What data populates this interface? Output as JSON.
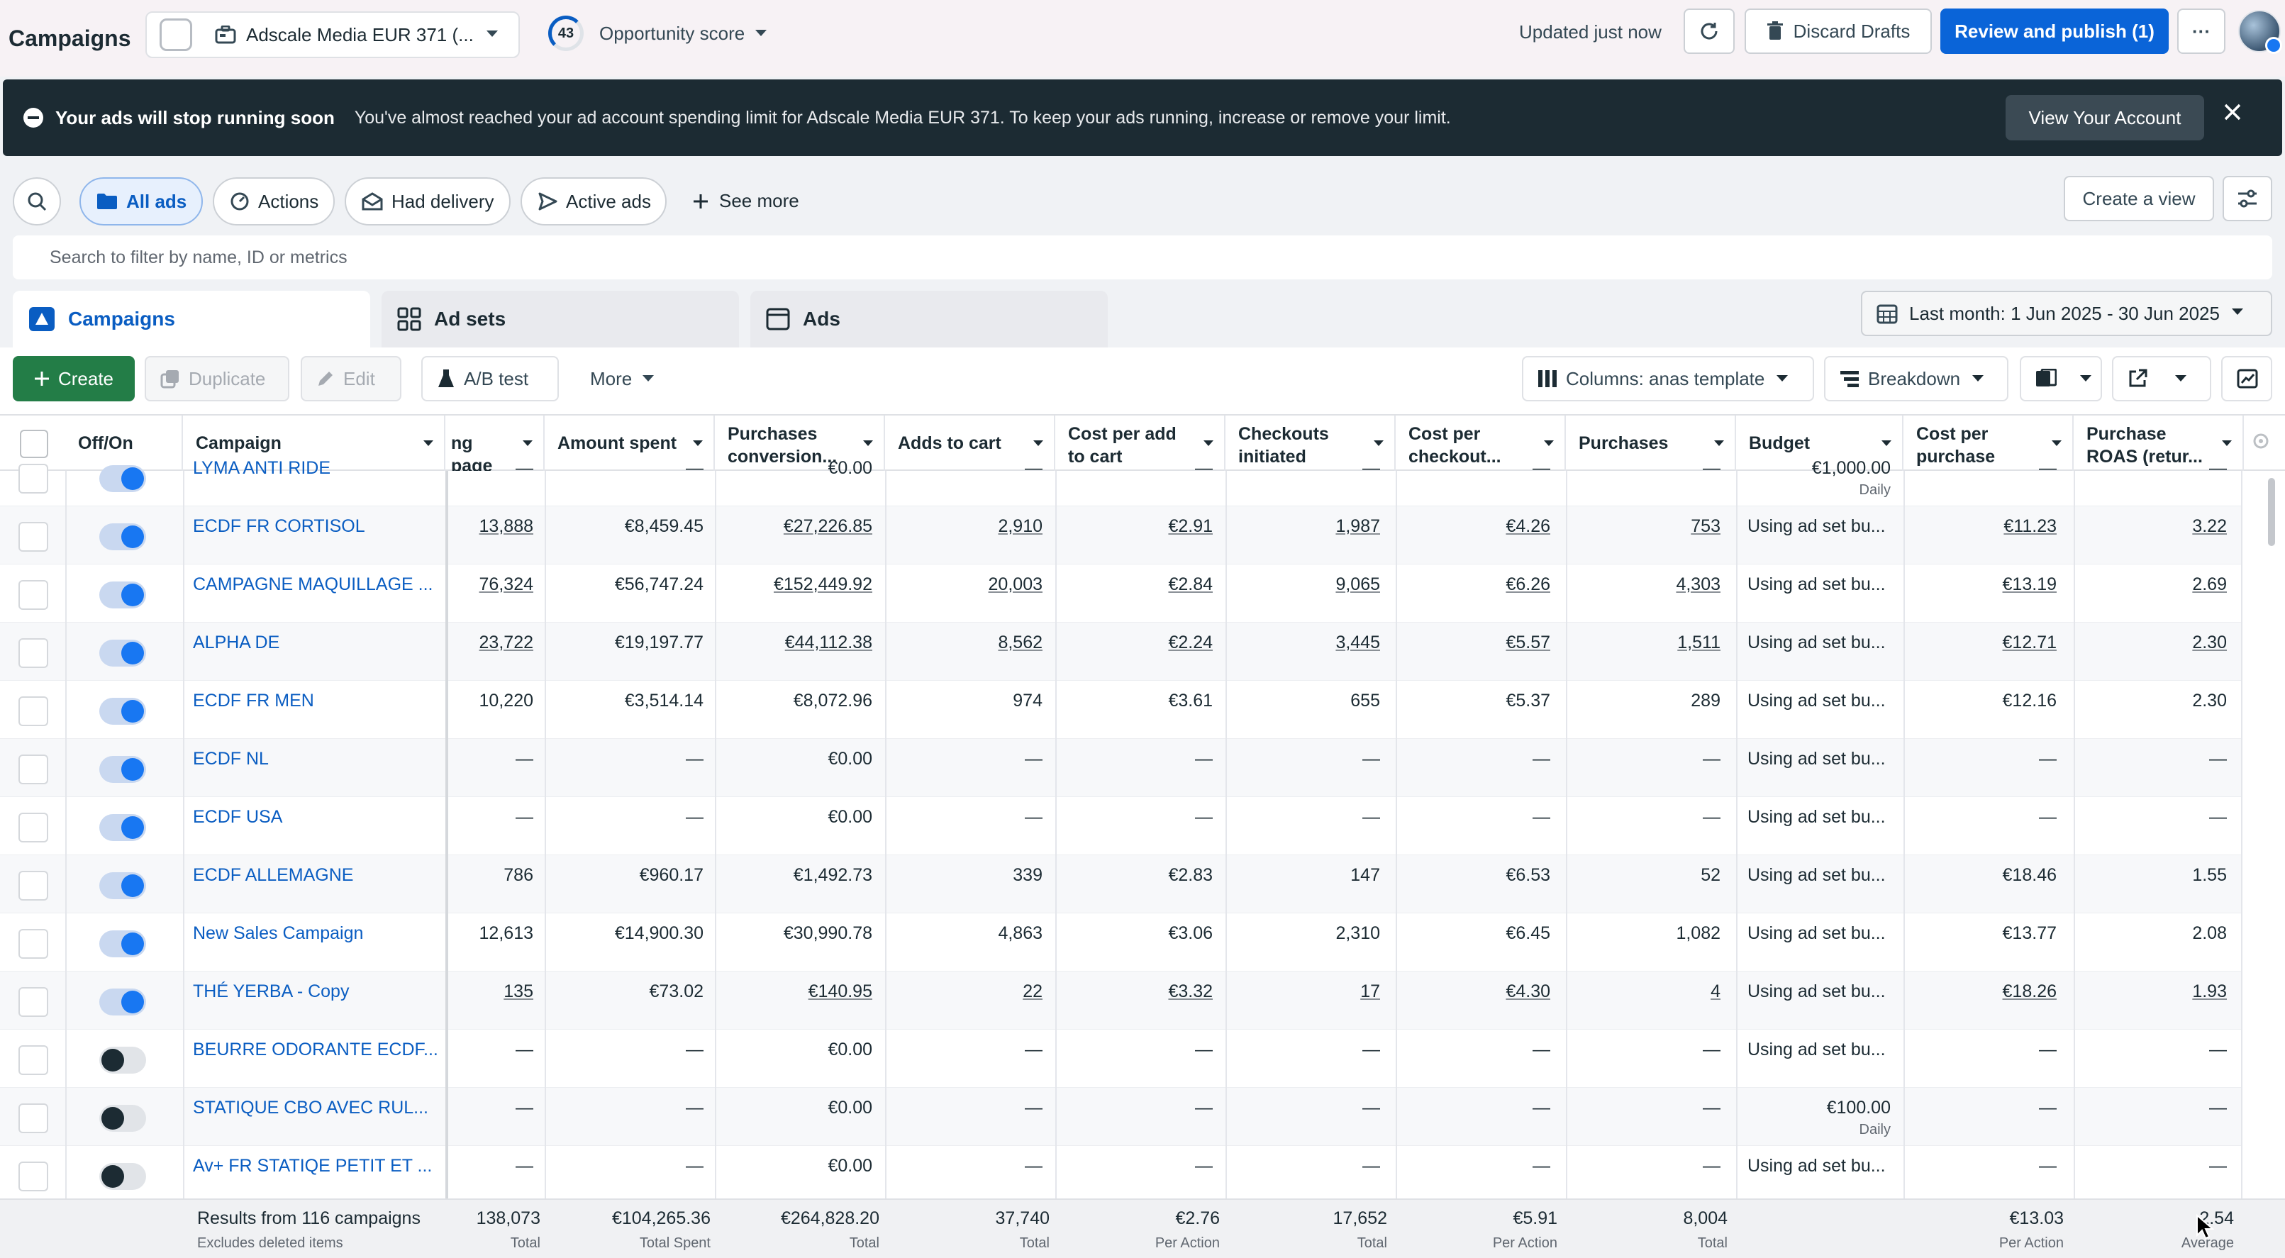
{
  "app_title": "Campaigns",
  "account": {
    "name": "Adscale Media EUR 371 (..."
  },
  "opportunity": {
    "score": "43",
    "label": "Opportunity score"
  },
  "header": {
    "updated": "Updated just now",
    "discard": "Discard Drafts",
    "review": "Review and publish (1)",
    "more": "···"
  },
  "banner": {
    "title": "Your ads will stop running soon",
    "message": "You've almost reached your ad account spending limit for Adscale Media EUR 371. To keep your ads running, increase or remove your limit.",
    "button": "View Your Account"
  },
  "chips": [
    "All ads",
    "Actions",
    "Had delivery",
    "Active ads"
  ],
  "see_more": "See more",
  "create_view": "Create a view",
  "search": {
    "placeholder": "Search to filter by name, ID or metrics"
  },
  "tabs": [
    "Campaigns",
    "Ad sets",
    "Ads"
  ],
  "date_range": "Last month: 1 Jun 2025 - 30 Jun 2025",
  "toolbar": {
    "create": "Create",
    "duplicate": "Duplicate",
    "edit": "Edit",
    "ab_test": "A/B test",
    "more": "More",
    "columns": "Columns: anas template",
    "breakdown": "Breakdown"
  },
  "columns": {
    "offon": "Off/On",
    "campaign": "Campaign",
    "landing": "ng page",
    "amount": "Amount spent",
    "pcv": "Purchases conversion...",
    "atc": "Adds to cart",
    "cpatc": "Cost per add to cart",
    "checkouts": "Checkouts initiated",
    "cpc": "Cost per checkout...",
    "purchases": "Purchases",
    "budget": "Budget",
    "cpp": "Cost per purchase",
    "roas": "Purchase ROAS (retur..."
  },
  "rows": [
    {
      "on": true,
      "name": "LYMA ANTI RIDE",
      "landing": "—",
      "amount": "—",
      "pcv": "€0.00",
      "atc": "—",
      "cpatc": "—",
      "checkouts": "—",
      "cpc": "—",
      "purchases": "—",
      "budget": "€1,000.00",
      "budget_sub": "Daily",
      "cpp": "—",
      "roas": "—",
      "ul": false
    },
    {
      "on": true,
      "name": "ECDF FR CORTISOL",
      "landing": "13,888",
      "amount": "€8,459.45",
      "pcv": "€27,226.85",
      "atc": "2,910",
      "cpatc": "€2.91",
      "checkouts": "1,987",
      "cpc": "€4.26",
      "purchases": "753",
      "budget": "Using ad set bu...",
      "budget_sub": "",
      "cpp": "€11.23",
      "roas": "3.22",
      "ul": true
    },
    {
      "on": true,
      "name": "CAMPAGNE MAQUILLAGE ...",
      "landing": "76,324",
      "amount": "€56,747.24",
      "pcv": "€152,449.92",
      "atc": "20,003",
      "cpatc": "€2.84",
      "checkouts": "9,065",
      "cpc": "€6.26",
      "purchases": "4,303",
      "budget": "Using ad set bu...",
      "budget_sub": "",
      "cpp": "€13.19",
      "roas": "2.69",
      "ul": true
    },
    {
      "on": true,
      "name": "ALPHA DE",
      "landing": "23,722",
      "amount": "€19,197.77",
      "pcv": "€44,112.38",
      "atc": "8,562",
      "cpatc": "€2.24",
      "checkouts": "3,445",
      "cpc": "€5.57",
      "purchases": "1,511",
      "budget": "Using ad set bu...",
      "budget_sub": "",
      "cpp": "€12.71",
      "roas": "2.30",
      "ul": true
    },
    {
      "on": true,
      "name": "ECDF FR MEN",
      "landing": "10,220",
      "amount": "€3,514.14",
      "pcv": "€8,072.96",
      "atc": "974",
      "cpatc": "€3.61",
      "checkouts": "655",
      "cpc": "€5.37",
      "purchases": "289",
      "budget": "Using ad set bu...",
      "budget_sub": "",
      "cpp": "€12.16",
      "roas": "2.30",
      "ul": false
    },
    {
      "on": true,
      "name": "ECDF NL",
      "landing": "—",
      "amount": "—",
      "pcv": "€0.00",
      "atc": "—",
      "cpatc": "—",
      "checkouts": "—",
      "cpc": "—",
      "purchases": "—",
      "budget": "Using ad set bu...",
      "budget_sub": "",
      "cpp": "—",
      "roas": "—",
      "ul": false
    },
    {
      "on": true,
      "name": "ECDF USA",
      "landing": "—",
      "amount": "—",
      "pcv": "€0.00",
      "atc": "—",
      "cpatc": "—",
      "checkouts": "—",
      "cpc": "—",
      "purchases": "—",
      "budget": "Using ad set bu...",
      "budget_sub": "",
      "cpp": "—",
      "roas": "—",
      "ul": false
    },
    {
      "on": true,
      "name": "ECDF ALLEMAGNE",
      "landing": "786",
      "amount": "€960.17",
      "pcv": "€1,492.73",
      "atc": "339",
      "cpatc": "€2.83",
      "checkouts": "147",
      "cpc": "€6.53",
      "purchases": "52",
      "budget": "Using ad set bu...",
      "budget_sub": "",
      "cpp": "€18.46",
      "roas": "1.55",
      "ul": false
    },
    {
      "on": true,
      "name": "New Sales Campaign",
      "landing": "12,613",
      "amount": "€14,900.30",
      "pcv": "€30,990.78",
      "atc": "4,863",
      "cpatc": "€3.06",
      "checkouts": "2,310",
      "cpc": "€6.45",
      "purchases": "1,082",
      "budget": "Using ad set bu...",
      "budget_sub": "",
      "cpp": "€13.77",
      "roas": "2.08",
      "ul": false
    },
    {
      "on": true,
      "name": "THÉ YERBA - Copy",
      "landing": "135",
      "amount": "€73.02",
      "pcv": "€140.95",
      "atc": "22",
      "cpatc": "€3.32",
      "checkouts": "17",
      "cpc": "€4.30",
      "purchases": "4",
      "budget": "Using ad set bu...",
      "budget_sub": "",
      "cpp": "€18.26",
      "roas": "1.93",
      "ul": true
    },
    {
      "on": false,
      "name": "BEURRE ODORANTE ECDF...",
      "landing": "—",
      "amount": "—",
      "pcv": "€0.00",
      "atc": "—",
      "cpatc": "—",
      "checkouts": "—",
      "cpc": "—",
      "purchases": "—",
      "budget": "Using ad set bu...",
      "budget_sub": "",
      "cpp": "—",
      "roas": "—",
      "ul": false
    },
    {
      "on": false,
      "name": "STATIQUE CBO AVEC RUL...",
      "landing": "—",
      "amount": "—",
      "pcv": "€0.00",
      "atc": "—",
      "cpatc": "—",
      "checkouts": "—",
      "cpc": "—",
      "purchases": "—",
      "budget": "€100.00",
      "budget_sub": "Daily",
      "cpp": "—",
      "roas": "—",
      "ul": false
    },
    {
      "on": false,
      "name": "Av+ FR STATIQE PETIT ET ...",
      "landing": "—",
      "amount": "—",
      "pcv": "€0.00",
      "atc": "—",
      "cpatc": "—",
      "checkouts": "—",
      "cpc": "—",
      "purchases": "—",
      "budget": "Using ad set bu...",
      "budget_sub": "",
      "cpp": "—",
      "roas": "—",
      "ul": false
    }
  ],
  "footer": {
    "results": "Results from 116 campaigns",
    "results_sub": "Excludes deleted items",
    "landing": "138,073",
    "landing_sub": "Total",
    "amount": "€104,265.36",
    "amount_sub": "Total Spent",
    "pcv": "€264,828.20",
    "pcv_sub": "Total",
    "atc": "37,740",
    "atc_sub": "Total",
    "cpatc": "€2.76",
    "cpatc_sub": "Per Action",
    "checkouts": "17,652",
    "checkouts_sub": "Total",
    "cpc": "€5.91",
    "cpc_sub": "Per Action",
    "purchases": "8,004",
    "purchases_sub": "Total",
    "cpp": "€13.03",
    "cpp_sub": "Per Action",
    "roas": "2.54",
    "roas_sub": "Average"
  },
  "colors": {
    "accent": "#0a64d8",
    "create_green": "#237d47",
    "banner_bg": "#1c2b33",
    "link": "#0a5dc2"
  }
}
